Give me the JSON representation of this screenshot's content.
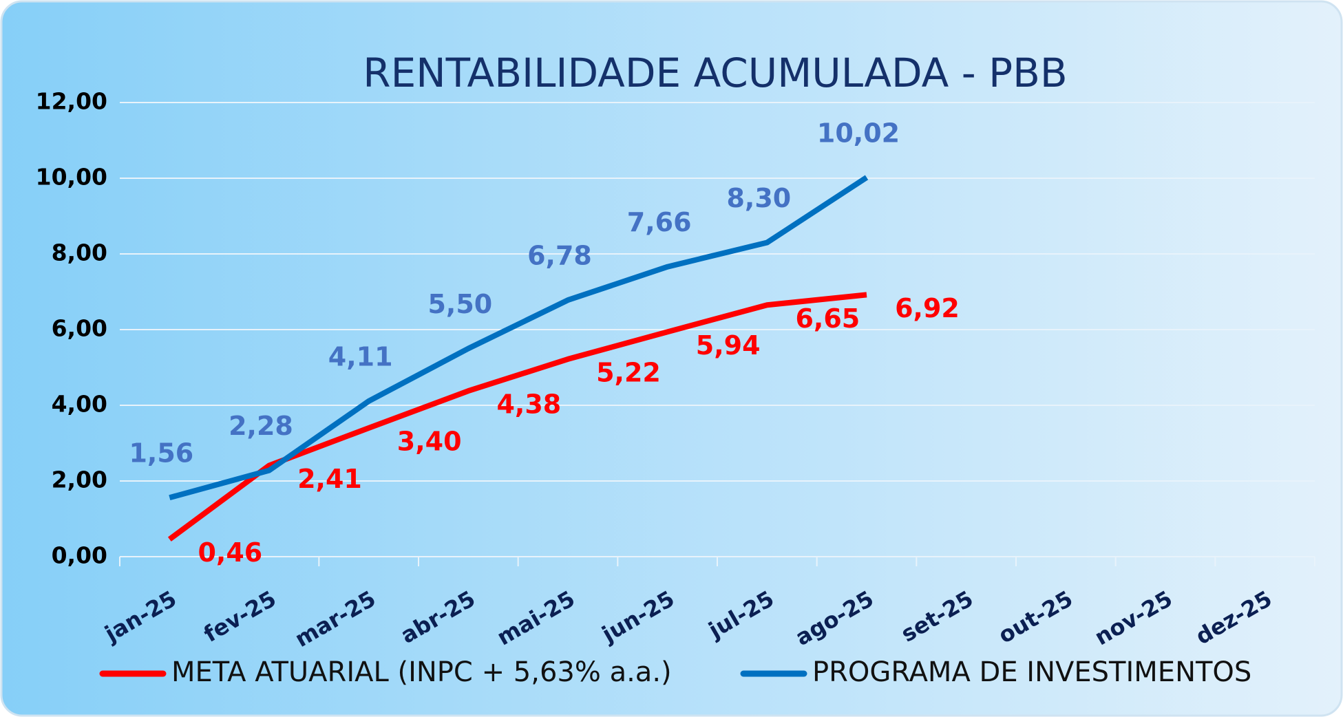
{
  "chart_data": {
    "type": "line",
    "title": "RENTABILIDADE ACUMULADA - PBB",
    "categories": [
      "jan-25",
      "fev-25",
      "mar-25",
      "abr-25",
      "mai-25",
      "jun-25",
      "jul-25",
      "ago-25",
      "set-25",
      "out-25",
      "nov-25",
      "dez-25"
    ],
    "series": [
      {
        "name": "META ATUARIAL (INPC + 5,63% a.a.)",
        "color": "#ff0000",
        "label_color": "#ff0000",
        "values": [
          0.46,
          2.41,
          3.4,
          4.38,
          5.22,
          5.94,
          6.65,
          6.92,
          null,
          null,
          null,
          null
        ],
        "value_labels": [
          "0,46",
          "2,41",
          "3,40",
          "4,38",
          "5,22",
          "5,94",
          "6,65",
          "6,92",
          null,
          null,
          null,
          null
        ]
      },
      {
        "name": "PROGRAMA DE INVESTIMENTOS",
        "color": "#0070c0",
        "label_color": "#4472c4",
        "values": [
          1.56,
          2.28,
          4.11,
          5.5,
          6.78,
          7.66,
          8.3,
          10.02,
          null,
          null,
          null,
          null
        ],
        "value_labels": [
          "1,56",
          "2,28",
          "4,11",
          "5,50",
          "6,78",
          "7,66",
          "8,30",
          "10,02",
          null,
          null,
          null,
          null
        ]
      }
    ],
    "ylim": [
      0,
      12
    ],
    "yticks": [
      {
        "value": 0,
        "label": "0,00"
      },
      {
        "value": 2,
        "label": "2,00"
      },
      {
        "value": 4,
        "label": "4,00"
      },
      {
        "value": 6,
        "label": "6,00"
      },
      {
        "value": 8,
        "label": "8,00"
      },
      {
        "value": 10,
        "label": "10,00"
      },
      {
        "value": 12,
        "label": "12,00"
      }
    ],
    "grid": true,
    "legend": "bottom"
  }
}
